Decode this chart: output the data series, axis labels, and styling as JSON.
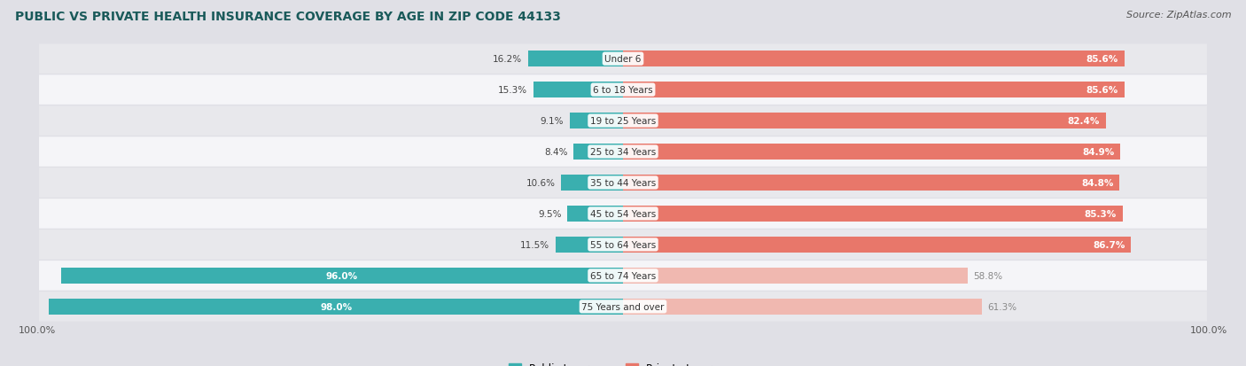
{
  "title": "PUBLIC VS PRIVATE HEALTH INSURANCE COVERAGE BY AGE IN ZIP CODE 44133",
  "source": "Source: ZipAtlas.com",
  "categories": [
    "Under 6",
    "6 to 18 Years",
    "19 to 25 Years",
    "25 to 34 Years",
    "35 to 44 Years",
    "45 to 54 Years",
    "55 to 64 Years",
    "65 to 74 Years",
    "75 Years and over"
  ],
  "public_values": [
    16.2,
    15.3,
    9.1,
    8.4,
    10.6,
    9.5,
    11.5,
    96.0,
    98.0
  ],
  "private_values": [
    85.6,
    85.6,
    82.4,
    84.9,
    84.8,
    85.3,
    86.7,
    58.8,
    61.3
  ],
  "public_color": "#3aafaf",
  "private_color_strong": "#e8776a",
  "private_color_light": "#f0b8b0",
  "row_bg_odd": "#e8e8ec",
  "row_bg_even": "#f5f5f8",
  "bg_color": "#e0e0e6",
  "title_color": "#1a5a5a",
  "max_val": 100.0,
  "bar_height": 0.52,
  "legend_public": "Public Insurance",
  "legend_private": "Private Insurance",
  "private_threshold": 65.0
}
